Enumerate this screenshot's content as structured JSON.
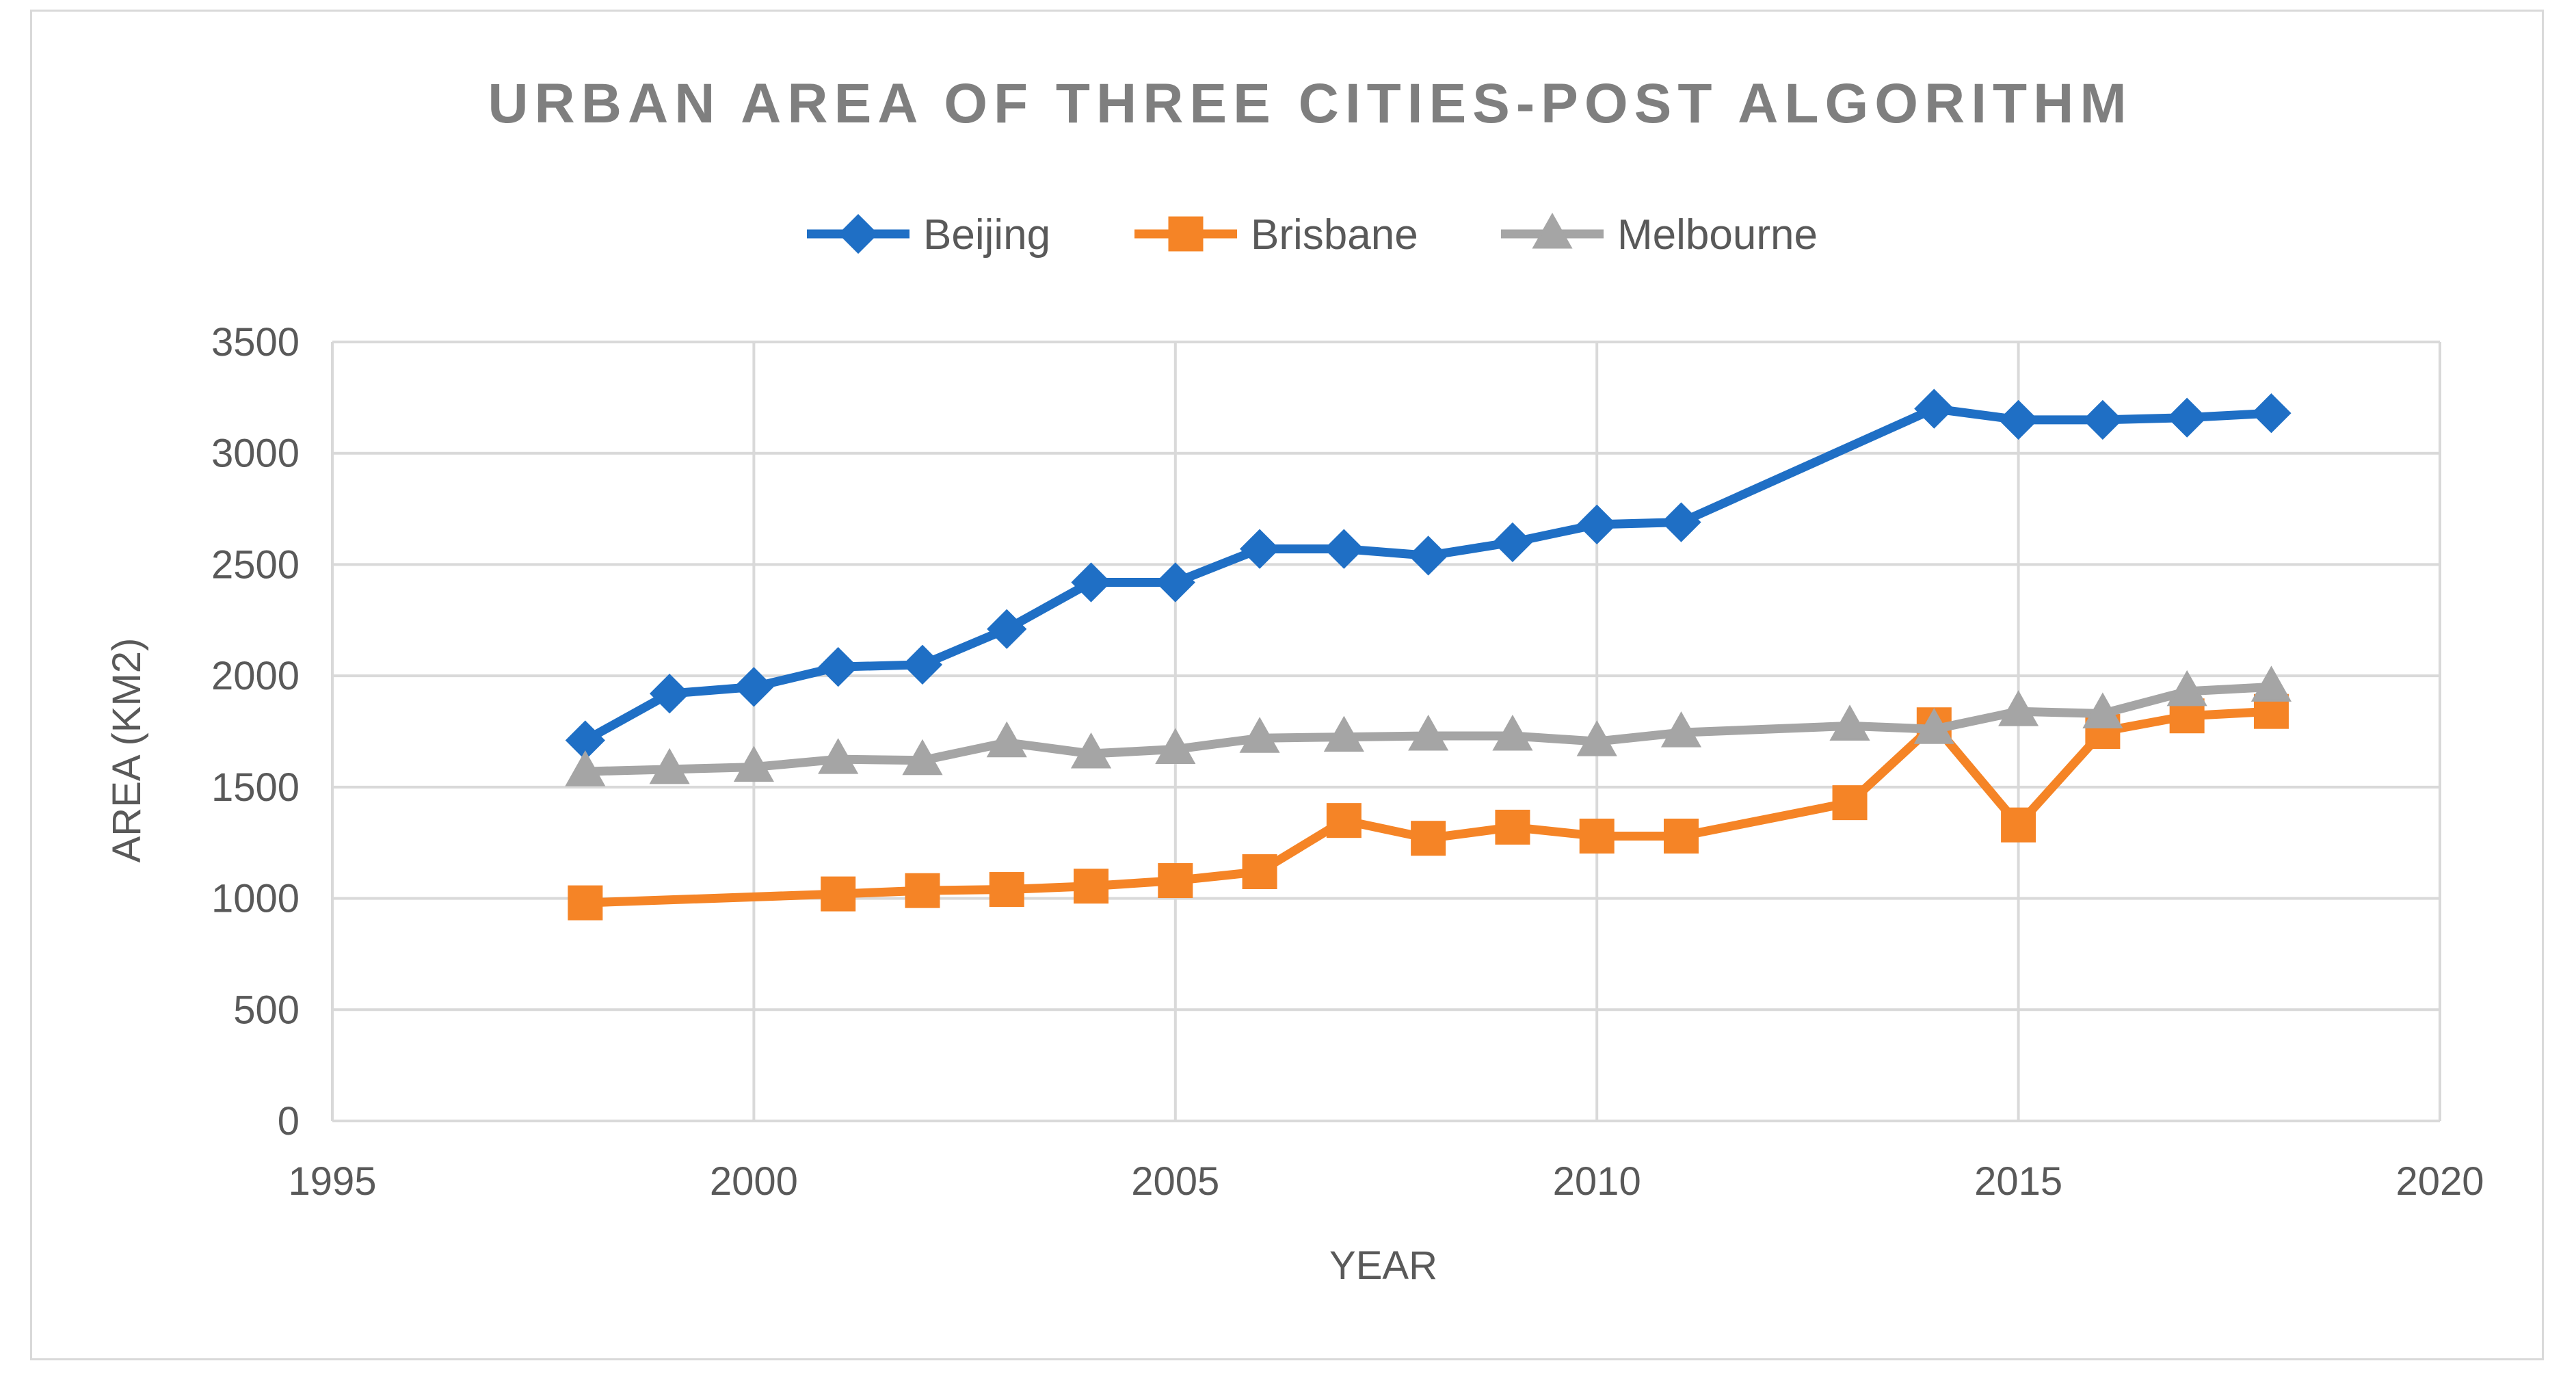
{
  "chart_data": {
    "type": "scatter",
    "title": "URBAN AREA OF THREE CITIES-POST ALGORITHM",
    "xlabel": "YEAR",
    "ylabel": "AREA (KM2)",
    "xlim": [
      1995,
      2020
    ],
    "ylim": [
      0,
      3500
    ],
    "x_ticks": [
      1995,
      2000,
      2005,
      2010,
      2015,
      2020
    ],
    "y_ticks": [
      0,
      500,
      1000,
      1500,
      2000,
      2500,
      3000,
      3500
    ],
    "grid": true,
    "legend_position": "top",
    "series": [
      {
        "name": "Beijing",
        "color": "#1f6fc5",
        "marker": "diamond",
        "x": [
          1998,
          1999,
          2000,
          2001,
          2002,
          2003,
          2004,
          2005,
          2006,
          2007,
          2008,
          2009,
          2010,
          2011,
          2014,
          2015,
          2016,
          2017,
          2018
        ],
        "values": [
          1710,
          1920,
          1950,
          2040,
          2050,
          2210,
          2420,
          2420,
          2570,
          2570,
          2540,
          2600,
          2680,
          2690,
          3200,
          3150,
          3150,
          3160,
          3180
        ]
      },
      {
        "name": "Brisbane",
        "color": "#f58426",
        "marker": "square",
        "x": [
          1998,
          2001,
          2002,
          2003,
          2004,
          2005,
          2006,
          2007,
          2008,
          2009,
          2010,
          2011,
          2013,
          2014,
          2015,
          2016,
          2017,
          2018
        ],
        "values": [
          980,
          1020,
          1035,
          1040,
          1055,
          1080,
          1120,
          1350,
          1270,
          1320,
          1280,
          1280,
          1430,
          1780,
          1330,
          1750,
          1820,
          1840
        ]
      },
      {
        "name": "Melbourne",
        "color": "#a5a5a5",
        "marker": "triangle",
        "x": [
          1998,
          1999,
          2000,
          2001,
          2002,
          2003,
          2004,
          2005,
          2006,
          2007,
          2008,
          2009,
          2010,
          2011,
          2013,
          2014,
          2015,
          2016,
          2017,
          2018
        ],
        "values": [
          1570,
          1580,
          1590,
          1625,
          1620,
          1700,
          1650,
          1670,
          1720,
          1725,
          1730,
          1730,
          1705,
          1745,
          1775,
          1760,
          1840,
          1830,
          1930,
          1950
        ]
      }
    ]
  }
}
